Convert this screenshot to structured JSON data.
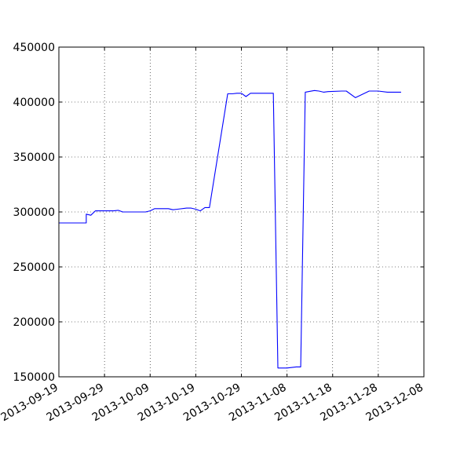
{
  "chart_data": {
    "type": "line",
    "title": "",
    "xlabel": "",
    "ylabel": "",
    "grid": true,
    "xlim": [
      "2013-09-19",
      "2013-12-08"
    ],
    "ylim": [
      150000,
      450000
    ],
    "x_ticks": [
      "2013-09-19",
      "2013-09-29",
      "2013-10-09",
      "2013-10-19",
      "2013-10-29",
      "2013-11-08",
      "2013-11-18",
      "2013-11-28",
      "2013-12-08"
    ],
    "y_ticks": [
      "150000",
      "200000",
      "250000",
      "300000",
      "350000",
      "400000",
      "450000"
    ],
    "series": [
      {
        "color": "#0000ff",
        "x": [
          "2013-09-19",
          "2013-09-25",
          "2013-09-25",
          "2013-09-26",
          "2013-09-27",
          "2013-10-01",
          "2013-10-02",
          "2013-10-03",
          "2013-10-04",
          "2013-10-05",
          "2013-10-06",
          "2013-10-07",
          "2013-10-08",
          "2013-10-09",
          "2013-10-10",
          "2013-10-12",
          "2013-10-13",
          "2013-10-14",
          "2013-10-15",
          "2013-10-17",
          "2013-10-18",
          "2013-10-19",
          "2013-10-20",
          "2013-10-21",
          "2013-10-22",
          "2013-10-26",
          "2013-10-27",
          "2013-10-28",
          "2013-10-29",
          "2013-10-30",
          "2013-10-31",
          "2013-11-01",
          "2013-11-05",
          "2013-11-06",
          "2013-11-07",
          "2013-11-08",
          "2013-11-10",
          "2013-11-11",
          "2013-11-12",
          "2013-11-14",
          "2013-11-15",
          "2013-11-16",
          "2013-11-17",
          "2013-11-20",
          "2013-11-21",
          "2013-11-23",
          "2013-11-26",
          "2013-11-27",
          "2013-11-28",
          "2013-11-30",
          "2013-12-02",
          "2013-12-03"
        ],
        "y": [
          290000,
          290000,
          298000,
          297000,
          301000,
          301000,
          301500,
          300000,
          300000,
          300000,
          300000,
          300000,
          300000,
          301000,
          303000,
          303000,
          303000,
          302000,
          302500,
          303500,
          303500,
          302500,
          301000,
          304000,
          304000,
          407500,
          407500,
          408000,
          408000,
          405000,
          408000,
          408000,
          408000,
          158000,
          158000,
          158000,
          159000,
          159000,
          409000,
          410500,
          410000,
          409000,
          409500,
          410000,
          410000,
          404000,
          410000,
          410000,
          410000,
          409000,
          409000,
          409000
        ]
      }
    ]
  }
}
